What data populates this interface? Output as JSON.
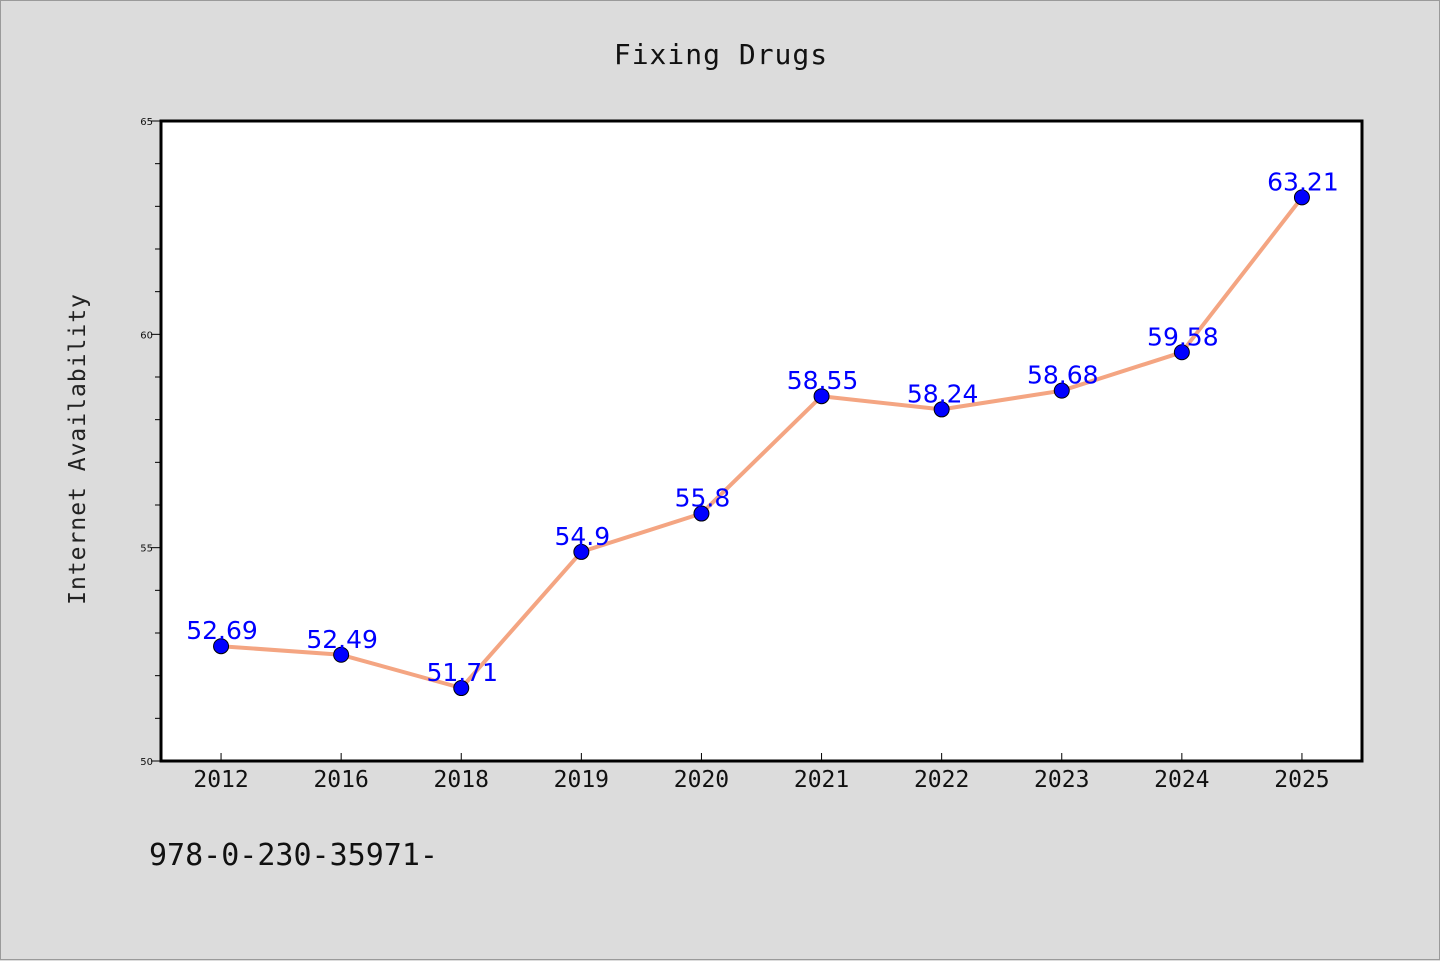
{
  "chart_data": {
    "type": "line",
    "title": "Fixing Drugs",
    "xlabel": "",
    "ylabel": "Internet Availability",
    "categories": [
      "2012",
      "2016",
      "2018",
      "2019",
      "2020",
      "2021",
      "2022",
      "2023",
      "2024",
      "2025"
    ],
    "series": [
      {
        "values": [
          52.69,
          52.49,
          51.71,
          54.9,
          55.8,
          58.55,
          58.24,
          58.68,
          59.58,
          63.21
        ]
      }
    ],
    "data_labels": [
      "52.69",
      "52.49",
      "51.71",
      "54.9",
      "55.8",
      "58.55",
      "58.24",
      "58.68",
      "59.58",
      "63.21"
    ],
    "ylim": [
      50,
      65
    ],
    "yticks": [
      50,
      55,
      60,
      65
    ],
    "ytick_labels": [
      "50",
      "55",
      "60",
      "65"
    ],
    "grid": false,
    "colors": {
      "line": "#f4a582",
      "marker": "#0000ff",
      "data_label": "#0000ff",
      "plot_bg": "#ffffff",
      "figure_bg": "#dcdcdc"
    }
  },
  "footer_text": "978-0-230-35971-"
}
